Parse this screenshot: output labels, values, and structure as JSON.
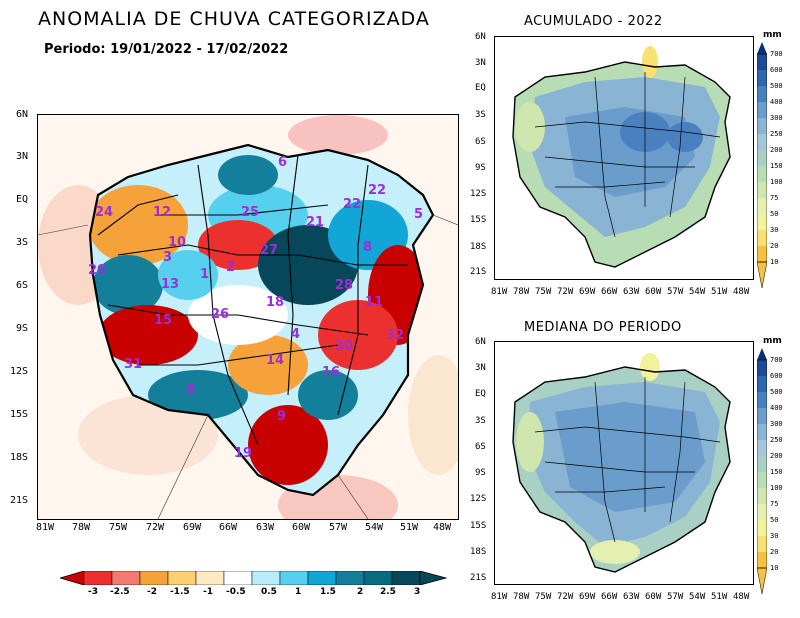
{
  "title": "ANOMALIA DE CHUVA CATEGORIZADA",
  "subtitle": "Periodo: 19/01/2022 - 17/02/2022",
  "main_map": {
    "lat_ticks": [
      "6N",
      "3N",
      "EQ",
      "3S",
      "6S",
      "9S",
      "12S",
      "15S",
      "18S",
      "21S"
    ],
    "lon_ticks": [
      "81W",
      "78W",
      "75W",
      "72W",
      "69W",
      "66W",
      "63W",
      "60W",
      "57W",
      "54W",
      "51W",
      "48W"
    ],
    "basin_labels": [
      {
        "text": "24"
      },
      {
        "text": "12"
      },
      {
        "text": "25"
      },
      {
        "text": "21"
      },
      {
        "text": "22"
      },
      {
        "text": "22"
      },
      {
        "text": "6"
      },
      {
        "text": "5"
      },
      {
        "text": "10"
      },
      {
        "text": "3"
      },
      {
        "text": "20"
      },
      {
        "text": "13"
      },
      {
        "text": "27"
      },
      {
        "text": "2"
      },
      {
        "text": "1"
      },
      {
        "text": "8"
      },
      {
        "text": "28"
      },
      {
        "text": "11"
      },
      {
        "text": "18"
      },
      {
        "text": "15"
      },
      {
        "text": "26"
      },
      {
        "text": "4"
      },
      {
        "text": "32"
      },
      {
        "text": "30"
      },
      {
        "text": "31"
      },
      {
        "text": "14"
      },
      {
        "text": "16"
      },
      {
        "text": "8"
      },
      {
        "text": "9"
      },
      {
        "text": "19"
      }
    ]
  },
  "colorbar": {
    "labels": [
      "-3",
      "-2.5",
      "-2",
      "-1.5",
      "-1",
      "-0.5",
      "0.5",
      "1",
      "1.5",
      "2",
      "2.5",
      "3"
    ],
    "colors": [
      "#c80000",
      "#ec3030",
      "#f37a6e",
      "#f6a23a",
      "#ffd070",
      "#ffe9c2",
      "#ffffff",
      "#b9ecfa",
      "#57d0f0",
      "#12a6d6",
      "#137f9a",
      "#06485a"
    ]
  },
  "panel_acumulado": {
    "title": "ACUMULADO - 2022",
    "lat_ticks": [
      "6N",
      "3N",
      "EQ",
      "3S",
      "6S",
      "9S",
      "12S",
      "15S",
      "18S",
      "21S"
    ],
    "lon_ticks": [
      "81W",
      "78W",
      "75W",
      "72W",
      "69W",
      "66W",
      "63W",
      "60W",
      "57W",
      "54W",
      "51W",
      "48W"
    ]
  },
  "panel_mediana": {
    "title": "MEDIANA DO PERIODO",
    "lat_ticks": [
      "6N",
      "3N",
      "EQ",
      "3S",
      "6S",
      "9S",
      "12S",
      "15S",
      "18S",
      "21S"
    ],
    "lon_ticks": [
      "81W",
      "78W",
      "75W",
      "72W",
      "69W",
      "66W",
      "63W",
      "60W",
      "57W",
      "54W",
      "51W",
      "48W"
    ]
  },
  "mm_colorbar": {
    "unit": "mm",
    "labels": [
      "700",
      "600",
      "500",
      "400",
      "300",
      "250",
      "200",
      "150",
      "100",
      "75",
      "50",
      "30",
      "20",
      "10"
    ],
    "colors": [
      "#0a2e7a",
      "#1c4a99",
      "#2f66b0",
      "#4a80c0",
      "#6a9ccc",
      "#89b4d4",
      "#a5c6d8",
      "#a9d0c4",
      "#b8dcb4",
      "#cfe6ae",
      "#e4efb0",
      "#f2f29a",
      "#f9e070",
      "#f6c040"
    ]
  }
}
